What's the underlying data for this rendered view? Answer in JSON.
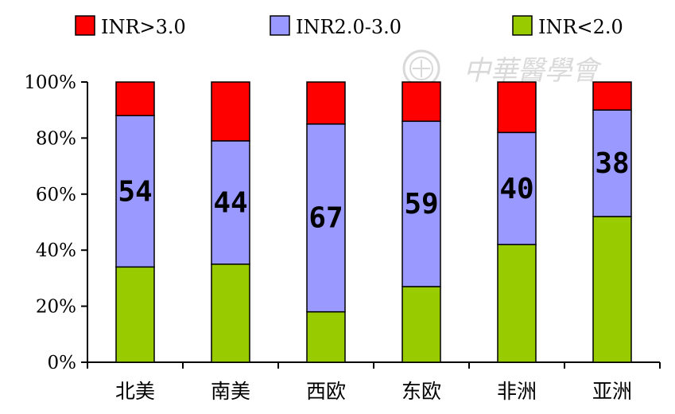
{
  "chart_data": {
    "type": "bar",
    "stacked": true,
    "percent_stacked": true,
    "categories": [
      "北美",
      "南美",
      "西欧",
      "东欧",
      "非洲",
      "亚洲"
    ],
    "series": [
      {
        "name": "INR<2.0",
        "color": "#99cc00",
        "values": [
          34,
          35,
          18,
          27,
          42,
          52
        ]
      },
      {
        "name": "INR2.0-3.0",
        "color": "#9999ff",
        "values": [
          54,
          44,
          67,
          59,
          40,
          38
        ]
      },
      {
        "name": "INR>3.0",
        "color": "#ff0000",
        "values": [
          12,
          21,
          15,
          14,
          18,
          10
        ]
      }
    ],
    "data_labels": [
      "54",
      "44",
      "67",
      "59",
      "40",
      "38"
    ],
    "y_ticks": [
      "0%",
      "20%",
      "40%",
      "60%",
      "80%",
      "100%"
    ],
    "ylim": [
      0,
      100
    ],
    "legend_order": [
      "INR>3.0",
      "INR2.0-3.0",
      "INR<2.0"
    ],
    "legend_position": "top",
    "grid": false
  },
  "watermark": {
    "text": "中華醫學會",
    "logo_icon": "society-seal-icon"
  }
}
